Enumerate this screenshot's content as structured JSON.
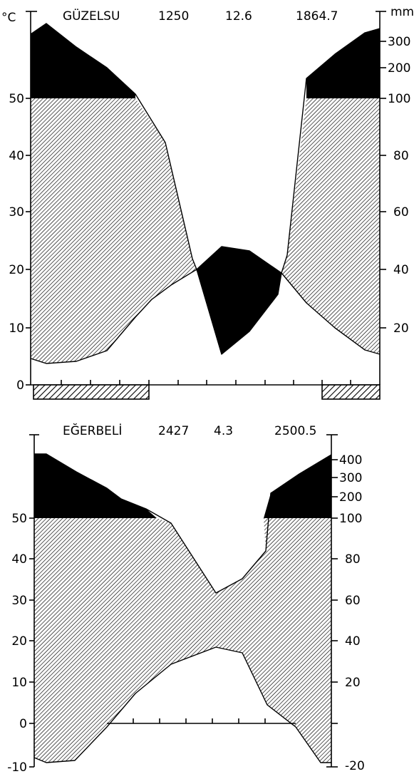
{
  "chart_data": [
    {
      "type": "area",
      "title": "GÜZELSU",
      "header_values": [
        "1250",
        "12.6",
        "1864.7"
      ],
      "left_axis": {
        "unit": "°C",
        "ticks": [
          0,
          10,
          20,
          30,
          40,
          50
        ],
        "range": [
          0,
          60
        ]
      },
      "right_axis": {
        "unit": "mm",
        "ticks": [
          "20",
          "40",
          "60",
          "80",
          "100",
          "200",
          "300"
        ]
      },
      "months": 12,
      "temperature": [
        4.5,
        4.5,
        5.5,
        8.0,
        13.5,
        17.5,
        21.5,
        22.0,
        17.5,
        13.0,
        8.5,
        5.0
      ],
      "precipitation_mm": [
        280,
        200,
        160,
        100,
        80,
        20,
        8,
        18,
        60,
        100,
        210,
        330
      ],
      "temperature_curve_x": [
        0,
        0.4,
        1.5,
        2.6,
        3.6,
        5.3,
        6.5,
        7.6,
        8.5,
        9.5,
        10.5,
        11.5
      ],
      "temperature_curve": [
        4.3,
        3.5,
        3.8,
        5.5,
        11.0,
        19.5,
        9.0,
        19.5,
        13.8,
        9.5,
        5.8,
        4.8
      ],
      "precipitation_curve_x": [
        0,
        0.6,
        1.5,
        2.6,
        3.6,
        4.6,
        5.3,
        6.5,
        7.1,
        8.0,
        8.5,
        9.5,
        11.0,
        12.0
      ],
      "precipitation_curve": [
        310,
        450,
        250,
        160,
        110,
        85,
        42,
        12,
        48,
        44,
        38,
        170,
        250,
        330
      ],
      "dry_months_bars": [
        [
          0,
          4.0
        ],
        [
          10.5,
          12.0
        ]
      ]
    },
    {
      "type": "area",
      "title": "EĞERBELİ",
      "header_values": [
        "2427",
        "4.3",
        "2500.5"
      ],
      "left_axis": {
        "ticks": [
          -10,
          0,
          10,
          20,
          30,
          40,
          50
        ],
        "range": [
          -10,
          60
        ]
      },
      "right_axis": {
        "ticks": [
          "-20",
          "20",
          "40",
          "60",
          "80",
          "100",
          "200",
          "300",
          "400"
        ]
      },
      "months": 12,
      "temperature_curve_x": [
        0,
        0.4,
        1.5,
        2.6,
        3.6,
        4.6,
        5.6,
        6.6,
        7.6,
        8.6,
        9.6,
        10.6,
        11.5
      ],
      "temperature_curve": [
        -8.5,
        -9.5,
        -9.0,
        -4.0,
        2.0,
        8.5,
        14.0,
        18.5,
        17.5,
        11.0,
        4.5,
        -1.5,
        -7.5
      ],
      "precipitation_curve_x": [
        0,
        0.4,
        1.5,
        2.6,
        3.6,
        4.6,
        5.4,
        6.5,
        7.3,
        8.1,
        9.0,
        10.0,
        11.5
      ],
      "precipitation_curve": [
        400,
        400,
        250,
        170,
        120,
        95,
        72,
        36,
        40,
        56,
        116,
        190,
        330
      ]
    }
  ]
}
